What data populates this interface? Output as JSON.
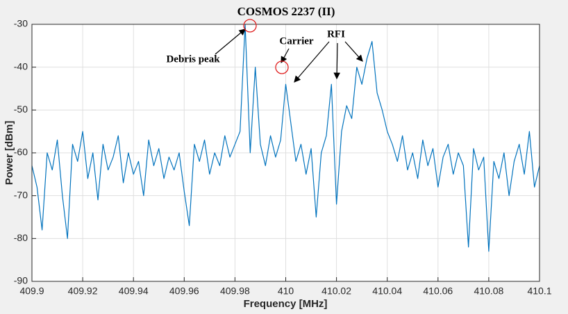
{
  "chart_data": {
    "type": "line",
    "title": "COSMOS 2237 (II)",
    "x_label": "Frequency [MHz]",
    "y_label": "Power [dBm]",
    "annotations": [
      "Debris peak",
      "Carrier",
      "RFI"
    ],
    "color": "#0072bd",
    "grid": true,
    "xlim": [
      409.9,
      410.1
    ],
    "ylim": [
      -90,
      -30
    ],
    "xticks": [
      409.9,
      409.92,
      409.94,
      409.96,
      409.98,
      410,
      410.02,
      410.04,
      410.06,
      410.08,
      410.1
    ],
    "yticks": [
      -90,
      -80,
      -70,
      -60,
      -50,
      -40,
      -30
    ],
    "x": [
      409.9,
      409.902,
      409.904,
      409.906,
      409.908,
      409.91,
      409.912,
      409.914,
      409.916,
      409.918,
      409.92,
      409.922,
      409.924,
      409.926,
      409.928,
      409.93,
      409.932,
      409.934,
      409.936,
      409.938,
      409.94,
      409.942,
      409.944,
      409.946,
      409.948,
      409.95,
      409.952,
      409.954,
      409.956,
      409.958,
      409.96,
      409.962,
      409.964,
      409.966,
      409.968,
      409.97,
      409.972,
      409.974,
      409.976,
      409.978,
      409.98,
      409.982,
      409.984,
      409.986,
      409.988,
      409.99,
      409.992,
      409.994,
      409.996,
      409.998,
      410,
      410.002,
      410.004,
      410.006,
      410.008,
      410.01,
      410.012,
      410.014,
      410.016,
      410.018,
      410.02,
      410.022,
      410.024,
      410.026,
      410.028,
      410.03,
      410.032,
      410.034,
      410.036,
      410.038,
      410.04,
      410.042,
      410.044,
      410.046,
      410.048,
      410.05,
      410.052,
      410.054,
      410.056,
      410.058,
      410.06,
      410.062,
      410.064,
      410.066,
      410.068,
      410.07,
      410.072,
      410.074,
      410.076,
      410.078,
      410.08,
      410.082,
      410.084,
      410.086,
      410.088,
      410.09,
      410.092,
      410.094,
      410.096,
      410.098,
      410.1
    ],
    "values": [
      -63,
      -68,
      -78,
      -60,
      -64,
      -57,
      -70,
      -80,
      -58,
      -62,
      -55,
      -66,
      -60,
      -71,
      -58,
      -64,
      -61,
      -56,
      -67,
      -60,
      -65,
      -62,
      -70,
      -57,
      -63,
      -59,
      -66,
      -61,
      -64,
      -60,
      -69,
      -77,
      -58,
      -62,
      -57,
      -65,
      -60,
      -63,
      -56,
      -61,
      -58,
      -55,
      -30,
      -60,
      -40,
      -58,
      -63,
      -56,
      -61,
      -57,
      -44,
      -53,
      -62,
      -58,
      -65,
      -59,
      -75,
      -60,
      -56,
      -44,
      -72,
      -55,
      -49,
      -52,
      -40,
      -44,
      -38,
      -34,
      -46,
      -50,
      -55,
      -58,
      -62,
      -56,
      -64,
      -60,
      -66,
      -57,
      -63,
      -59,
      -68,
      -61,
      -58,
      -65,
      -60,
      -63,
      -82,
      -59,
      -64,
      -61,
      -83,
      -62,
      -66,
      -60,
      -70,
      -62,
      -58,
      -65,
      -55,
      -68,
      -63
    ]
  }
}
